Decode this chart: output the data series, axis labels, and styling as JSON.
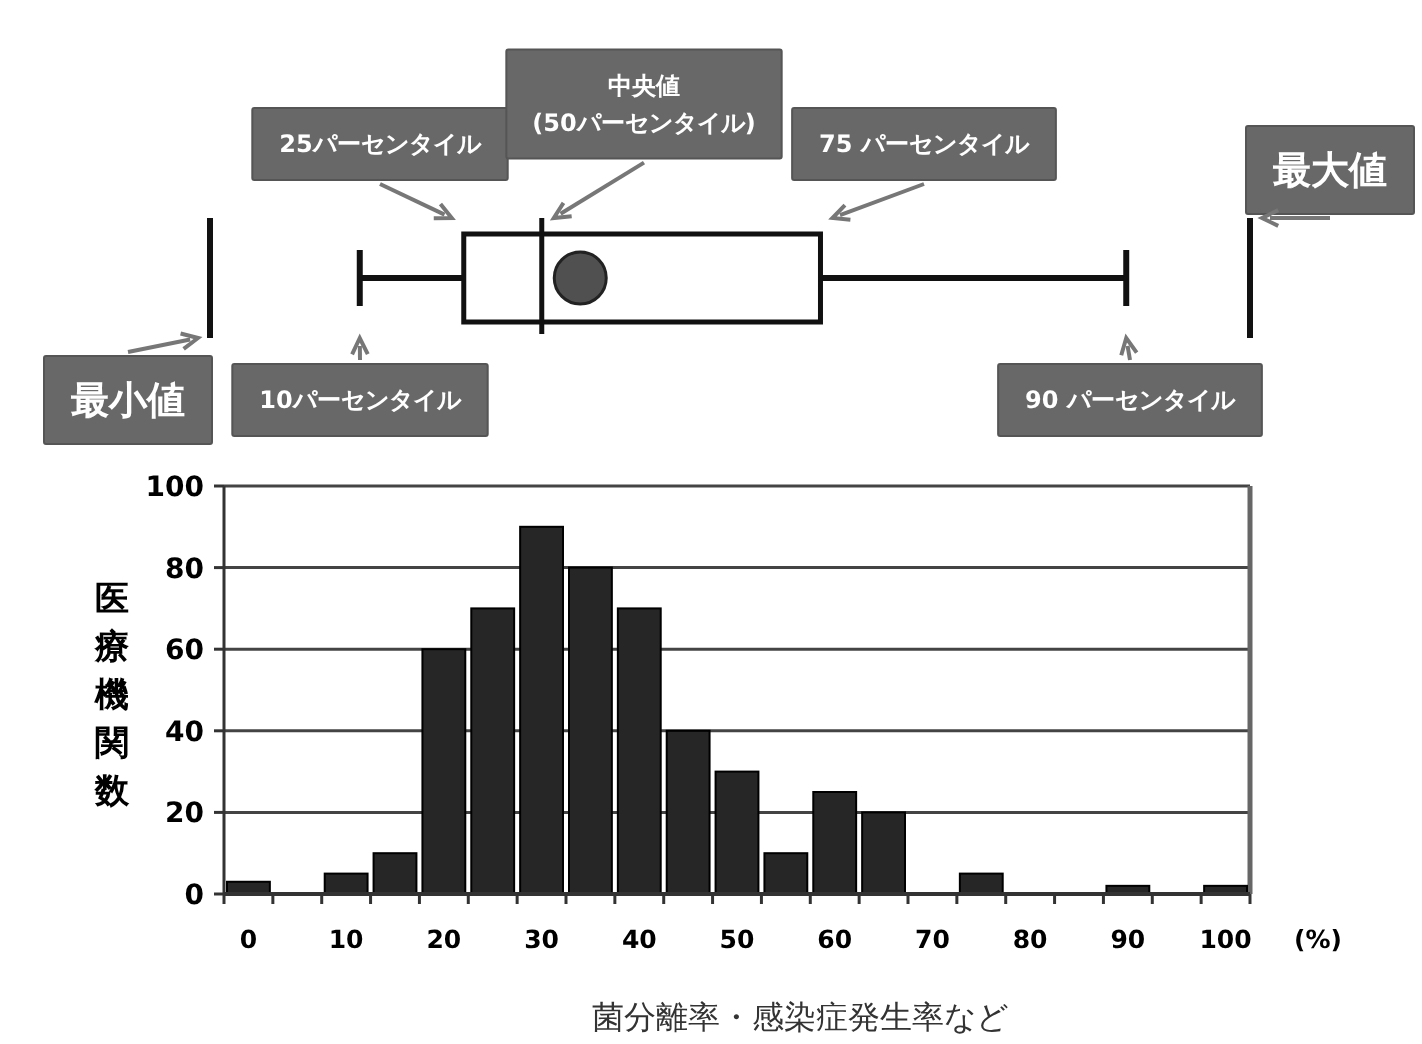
{
  "chart_data": [
    {
      "type": "other",
      "annotations": [
        "最小値",
        "10パーセンタイル",
        "25パーセンタイル",
        "中央値\n(50パーセンタイル)",
        "75 パーセンタイル",
        "90 パーセンタイル",
        "最大値"
      ]
    },
    {
      "type": "bar",
      "categories": [
        "0",
        null,
        "10",
        null,
        "20",
        null,
        "30",
        null,
        "40",
        null,
        "50",
        null,
        "60",
        null,
        "70",
        null,
        "80",
        null,
        "90",
        null,
        "100"
      ],
      "values": [
        3,
        0,
        5,
        10,
        60,
        70,
        90,
        80,
        70,
        40,
        30,
        10,
        25,
        20,
        0,
        5,
        0,
        0,
        2,
        0,
        2
      ],
      "color": "#262626",
      "ylim": [
        0,
        100
      ],
      "yticks": [
        0,
        20,
        40,
        60,
        80,
        100
      ],
      "grid": "y",
      "xlabel": "菌分離率・感染症発生率など",
      "ylabel": "医療機関数",
      "annotations": [
        "(%)"
      ]
    }
  ]
}
